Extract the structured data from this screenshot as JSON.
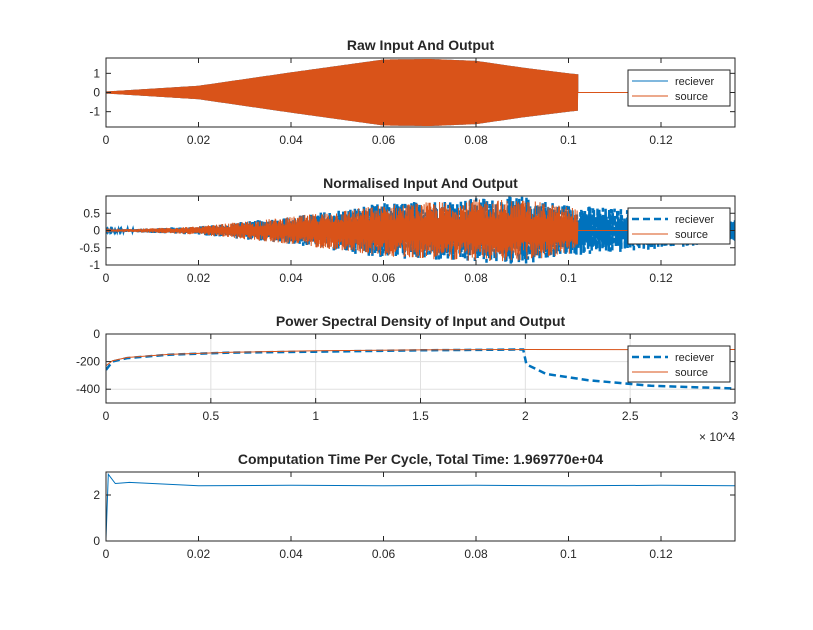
{
  "figure": {
    "background": "#ffffff",
    "colors": {
      "receiver": "#0072bd",
      "source": "#d95319",
      "axis": "#262626",
      "grid": "#e0e0e0"
    }
  },
  "chart_data": [
    {
      "type": "line",
      "title": "Raw Input And Output",
      "xlim": [
        0,
        0.136
      ],
      "ylim": [
        -1.8,
        1.8
      ],
      "x_ticks": [
        0,
        0.02,
        0.04,
        0.06,
        0.08,
        0.1,
        0.12
      ],
      "x_tick_labels": [
        "0",
        "0.02",
        "0.04",
        "0.06",
        "0.08",
        "0.1",
        "0.12"
      ],
      "y_ticks": [
        -1,
        0,
        1
      ],
      "y_tick_labels": [
        "-1",
        "0",
        "1"
      ],
      "grid": false,
      "legend": "top-right",
      "series": [
        {
          "name": "reciever",
          "color": "#0072bd",
          "style": "solid",
          "kind": "oscillating envelope",
          "envelope": [
            [
              0,
              0.05
            ],
            [
              0.02,
              0.35
            ],
            [
              0.04,
              1.05
            ],
            [
              0.06,
              1.72
            ],
            [
              0.07,
              1.75
            ],
            [
              0.08,
              1.65
            ],
            [
              0.09,
              1.3
            ],
            [
              0.1,
              1.0
            ],
            [
              0.102,
              0.95
            ]
          ],
          "after_signal_end": [
            [
              0.102,
              0.0
            ],
            [
              0.136,
              0.0
            ]
          ]
        },
        {
          "name": "source",
          "color": "#d95319",
          "style": "solid",
          "kind": "oscillating envelope",
          "envelope": [
            [
              0,
              0.05
            ],
            [
              0.02,
              0.35
            ],
            [
              0.04,
              1.05
            ],
            [
              0.06,
              1.72
            ],
            [
              0.07,
              1.75
            ],
            [
              0.08,
              1.65
            ],
            [
              0.09,
              1.3
            ],
            [
              0.1,
              1.0
            ],
            [
              0.102,
              0.95
            ]
          ],
          "after_signal_end": [
            [
              0.102,
              0.0
            ],
            [
              0.136,
              0.0
            ]
          ]
        }
      ]
    },
    {
      "type": "line",
      "title": "Normalised Input And Output",
      "xlim": [
        0,
        0.136
      ],
      "ylim": [
        -1,
        1
      ],
      "x_ticks": [
        0,
        0.02,
        0.04,
        0.06,
        0.08,
        0.1,
        0.12
      ],
      "x_tick_labels": [
        "0",
        "0.02",
        "0.04",
        "0.06",
        "0.08",
        "0.1",
        "0.12"
      ],
      "y_ticks": [
        -1,
        -0.5,
        0,
        0.5
      ],
      "y_tick_labels": [
        "-1",
        "-0.5",
        "0",
        "0.5"
      ],
      "grid": false,
      "legend": "right",
      "series": [
        {
          "name": "reciever",
          "color": "#0072bd",
          "style": "dashed",
          "kind": "noisy oscillation",
          "envelope": [
            [
              0,
              0.02
            ],
            [
              0.02,
              0.12
            ],
            [
              0.04,
              0.4
            ],
            [
              0.06,
              0.8
            ],
            [
              0.08,
              0.95
            ],
            [
              0.09,
              1.0
            ],
            [
              0.1,
              0.75
            ],
            [
              0.12,
              0.55
            ],
            [
              0.136,
              0.3
            ]
          ]
        },
        {
          "name": "source",
          "color": "#d95319",
          "style": "solid",
          "kind": "noisy oscillation",
          "envelope": [
            [
              0,
              0.02
            ],
            [
              0.02,
              0.12
            ],
            [
              0.04,
              0.4
            ],
            [
              0.06,
              0.75
            ],
            [
              0.08,
              0.9
            ],
            [
              0.09,
              0.9
            ],
            [
              0.1,
              0.7
            ],
            [
              0.102,
              0.65
            ]
          ],
          "after_signal_end": [
            [
              0.102,
              0.0
            ],
            [
              0.136,
              0.0
            ]
          ]
        }
      ]
    },
    {
      "type": "line",
      "title": "Power Spectral Density of Input and Output",
      "xlim": [
        0,
        30000
      ],
      "ylim": [
        -500,
        0
      ],
      "x_ticks": [
        0,
        5000,
        10000,
        15000,
        20000,
        25000,
        30000
      ],
      "x_tick_labels": [
        "0",
        "0.5",
        "1",
        "1.5",
        "2",
        "2.5",
        "3"
      ],
      "x_exponent_label": "× 10^4",
      "y_ticks": [
        -400,
        -200,
        0
      ],
      "y_tick_labels": [
        "-400",
        "-200",
        "0"
      ],
      "grid": true,
      "legend": "right",
      "series": [
        {
          "name": "reciever",
          "color": "#0072bd",
          "style": "dashed",
          "points": [
            [
              0,
              -260
            ],
            [
              300,
              -200
            ],
            [
              1000,
              -175
            ],
            [
              3000,
              -150
            ],
            [
              6000,
              -135
            ],
            [
              10000,
              -128
            ],
            [
              15000,
              -118
            ],
            [
              19900,
              -112
            ],
            [
              20050,
              -220
            ],
            [
              21000,
              -290
            ],
            [
              23000,
              -335
            ],
            [
              26000,
              -375
            ],
            [
              30000,
              -395
            ]
          ]
        },
        {
          "name": "source",
          "color": "#d95319",
          "style": "solid",
          "points": [
            [
              0,
              -230
            ],
            [
              300,
              -195
            ],
            [
              1000,
              -170
            ],
            [
              3000,
              -148
            ],
            [
              6000,
              -132
            ],
            [
              10000,
              -122
            ],
            [
              15000,
              -115
            ],
            [
              20000,
              -112
            ],
            [
              25000,
              -113
            ],
            [
              30000,
              -112
            ]
          ]
        }
      ]
    },
    {
      "type": "line",
      "title": "Computation Time Per Cycle, Total Time: 1.969770e+04",
      "xlim": [
        0,
        0.136
      ],
      "ylim": [
        0,
        3
      ],
      "x_ticks": [
        0,
        0.02,
        0.04,
        0.06,
        0.08,
        0.1,
        0.12
      ],
      "x_tick_labels": [
        "0",
        "0.02",
        "0.04",
        "0.06",
        "0.08",
        "0.1",
        "0.12"
      ],
      "y_ticks": [
        0,
        2
      ],
      "y_tick_labels": [
        "0",
        "2"
      ],
      "grid": false,
      "legend": "none",
      "series": [
        {
          "color": "#0072bd",
          "style": "solid",
          "points": [
            [
              0,
              0.1
            ],
            [
              0.0005,
              2.9
            ],
            [
              0.002,
              2.5
            ],
            [
              0.005,
              2.55
            ],
            [
              0.01,
              2.5
            ],
            [
              0.02,
              2.4
            ],
            [
              0.04,
              2.42
            ],
            [
              0.06,
              2.4
            ],
            [
              0.08,
              2.42
            ],
            [
              0.1,
              2.4
            ],
            [
              0.12,
              2.42
            ],
            [
              0.136,
              2.4
            ]
          ]
        }
      ]
    }
  ]
}
